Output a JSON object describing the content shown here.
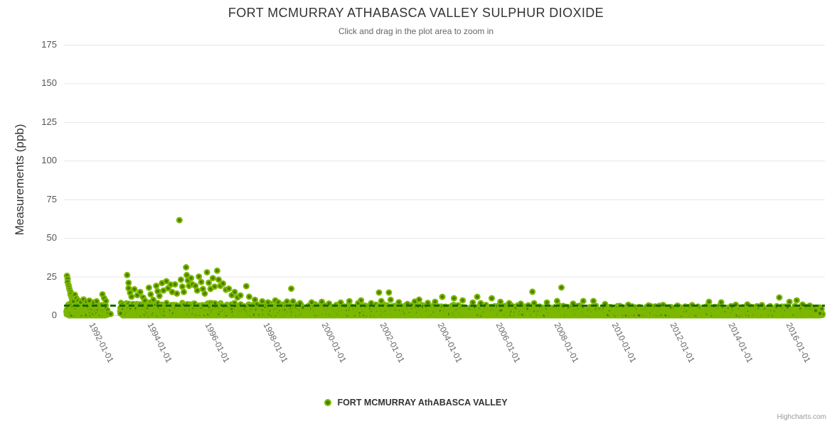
{
  "credits": "Highcharts.com",
  "colors": {
    "series": "#7cb800",
    "marker_inner": "#4a7c00",
    "plot_line": "#176b00",
    "grid": "#e6e6e6",
    "axis_line": "#ccd6eb",
    "title_text": "#333333",
    "muted_text": "#666666",
    "credits_text": "#999999"
  },
  "chart_data": {
    "type": "scatter",
    "title": "FORT MCMURRAY ATHABASCA VALLEY SULPHUR DIOXIDE",
    "subtitle": "Click and drag in the plot area to zoom in",
    "ylabel": "Measurements (ppb)",
    "ylim": [
      0,
      175
    ],
    "yticks": [
      0,
      25,
      50,
      75,
      100,
      125,
      150,
      175
    ],
    "xtick_labels": [
      "1992-01-01",
      "1994-01-01",
      "1996-01-01",
      "1998-01-01",
      "2000-01-01",
      "2002-01-01",
      "2004-01-01",
      "2006-01-01",
      "2008-01-01",
      "2010-01-01",
      "2012-01-01",
      "2014-01-01",
      "2016-01-01"
    ],
    "xtick_years": [
      1992,
      1994,
      1996,
      1998,
      2000,
      2002,
      2004,
      2006,
      2008,
      2010,
      2012,
      2014,
      2016
    ],
    "grid": true,
    "legend_position": "bottom",
    "plot_line": {
      "y": 6.2,
      "style": "dashed"
    },
    "series": [
      {
        "name": "FORT MCMURRAY AthABASCA VALLEY",
        "type": "scatter",
        "outlier_points": [
          [
            1990.88,
            25.5
          ],
          [
            1990.9,
            23.5
          ],
          [
            1990.9,
            21.5
          ],
          [
            1990.93,
            19.5
          ],
          [
            1990.95,
            18
          ],
          [
            1990.97,
            16.5
          ],
          [
            1991.0,
            15
          ],
          [
            1991.0,
            13.5
          ],
          [
            1991.03,
            12
          ],
          [
            1991.05,
            11
          ],
          [
            1991.08,
            10
          ],
          [
            1991.1,
            9
          ],
          [
            1991.15,
            13.2
          ],
          [
            1991.2,
            11
          ],
          [
            1991.26,
            9.5
          ],
          [
            1991.35,
            8.5
          ],
          [
            1991.45,
            10.2
          ],
          [
            1991.55,
            8.8
          ],
          [
            1991.65,
            9.4
          ],
          [
            1991.8,
            8.2
          ],
          [
            1991.9,
            9
          ],
          [
            1992.1,
            13.5
          ],
          [
            1992.16,
            11
          ],
          [
            1992.22,
            9.2
          ],
          [
            1992.38,
            0.8
          ],
          [
            1992.72,
            1.2
          ],
          [
            1992.95,
            26
          ],
          [
            1993.0,
            21
          ],
          [
            1993.0,
            17.5
          ],
          [
            1993.05,
            14.5
          ],
          [
            1993.1,
            12
          ],
          [
            1993.2,
            16.8
          ],
          [
            1993.3,
            13
          ],
          [
            1993.4,
            15
          ],
          [
            1993.5,
            11.5
          ],
          [
            1993.56,
            9.5
          ],
          [
            1993.7,
            17.8
          ],
          [
            1993.76,
            13.5
          ],
          [
            1993.85,
            10
          ],
          [
            1993.95,
            19
          ],
          [
            1994.0,
            15.5
          ],
          [
            1994.06,
            12.5
          ],
          [
            1994.15,
            20.8
          ],
          [
            1994.2,
            16
          ],
          [
            1994.3,
            22
          ],
          [
            1994.36,
            17.5
          ],
          [
            1994.45,
            19.8
          ],
          [
            1994.5,
            15
          ],
          [
            1994.6,
            20
          ],
          [
            1994.66,
            14
          ],
          [
            1994.75,
            61.5
          ],
          [
            1994.8,
            23
          ],
          [
            1994.85,
            18.5
          ],
          [
            1994.9,
            15
          ],
          [
            1994.98,
            31
          ],
          [
            1995.0,
            26
          ],
          [
            1995.04,
            22.5
          ],
          [
            1995.08,
            19
          ],
          [
            1995.15,
            24
          ],
          [
            1995.2,
            20
          ],
          [
            1995.3,
            19
          ],
          [
            1995.36,
            16
          ],
          [
            1995.42,
            25
          ],
          [
            1995.5,
            21.5
          ],
          [
            1995.56,
            17
          ],
          [
            1995.62,
            14
          ],
          [
            1995.7,
            27.8
          ],
          [
            1995.76,
            21
          ],
          [
            1995.82,
            17
          ],
          [
            1995.9,
            24
          ],
          [
            1995.96,
            18.5
          ],
          [
            1996.05,
            28.8
          ],
          [
            1996.1,
            23
          ],
          [
            1996.16,
            19
          ],
          [
            1996.25,
            20.5
          ],
          [
            1996.35,
            16.5
          ],
          [
            1996.45,
            17.2
          ],
          [
            1996.55,
            13
          ],
          [
            1996.65,
            15
          ],
          [
            1996.75,
            11.5
          ],
          [
            1996.85,
            12.8
          ],
          [
            1997.05,
            18.8
          ],
          [
            1997.15,
            12
          ],
          [
            1997.35,
            10
          ],
          [
            1997.6,
            9
          ],
          [
            1997.8,
            8.3
          ],
          [
            1998.05,
            9.6
          ],
          [
            1998.15,
            8.4
          ],
          [
            1998.45,
            8.8
          ],
          [
            1998.6,
            17.2
          ],
          [
            1998.66,
            8.9
          ],
          [
            1998.9,
            7.8
          ],
          [
            1999.3,
            8.3
          ],
          [
            1999.65,
            8.7
          ],
          [
            1999.9,
            7.6
          ],
          [
            2000.3,
            8.2
          ],
          [
            2000.6,
            9.1
          ],
          [
            2000.9,
            7.8
          ],
          [
            2001.0,
            9.6
          ],
          [
            2001.35,
            7.8
          ],
          [
            2001.62,
            14.7
          ],
          [
            2001.7,
            9.2
          ],
          [
            2001.96,
            14.7
          ],
          [
            2002.02,
            10
          ],
          [
            2002.3,
            8.4
          ],
          [
            2002.6,
            7.3
          ],
          [
            2002.85,
            8.8
          ],
          [
            2003.0,
            10.1
          ],
          [
            2003.3,
            8
          ],
          [
            2003.55,
            8.7
          ],
          [
            2003.8,
            11.9
          ],
          [
            2004.2,
            11
          ],
          [
            2004.5,
            9.6
          ],
          [
            2004.85,
            8.2
          ],
          [
            2005.0,
            11.9
          ],
          [
            2005.12,
            7.8
          ],
          [
            2005.5,
            11
          ],
          [
            2005.8,
            8.7
          ],
          [
            2006.1,
            7.8
          ],
          [
            2006.5,
            7.5
          ],
          [
            2006.9,
            15.2
          ],
          [
            2006.96,
            7.8
          ],
          [
            2007.4,
            8.2
          ],
          [
            2007.75,
            9.2
          ],
          [
            2007.9,
            17.9
          ],
          [
            2007.96,
            6
          ],
          [
            2008.3,
            7.5
          ],
          [
            2008.65,
            9.2
          ],
          [
            2009.0,
            9.2
          ],
          [
            2009.4,
            7.2
          ],
          [
            2010.2,
            6.8
          ],
          [
            2010.9,
            6.4
          ],
          [
            2011.4,
            6.6
          ],
          [
            2011.9,
            6.2
          ],
          [
            2012.4,
            6.5
          ],
          [
            2012.98,
            8.7
          ],
          [
            2013.4,
            8.3
          ],
          [
            2013.9,
            6.8
          ],
          [
            2014.3,
            7
          ],
          [
            2014.8,
            6.6
          ],
          [
            2015.4,
            11.5
          ],
          [
            2015.75,
            8.7
          ],
          [
            2016.0,
            9.6
          ],
          [
            2016.2,
            6.9
          ],
          [
            2016.45,
            6.2
          ],
          [
            2016.65,
            3
          ],
          [
            2016.8,
            1.2
          ]
        ],
        "dense_band": {
          "note": "continuous dense cloud of sub-daily measurements between 0 and ~7 ppb across full record",
          "x_start": 1990.85,
          "x_end": 2016.9,
          "y_min": 0,
          "top_envelope": [
            [
              1990.85,
              7.5
            ],
            [
              1992.3,
              6.8
            ],
            [
              1993.0,
              7.5
            ],
            [
              1997.0,
              6.8
            ],
            [
              2002.0,
              6.3
            ],
            [
              2008.0,
              5.6
            ],
            [
              2012.0,
              5.4
            ],
            [
              2016.9,
              5.2
            ]
          ],
          "gaps": [
            [
              1992.3,
              1992.7
            ]
          ],
          "points_per_year": 100,
          "seed": 42
        }
      }
    ]
  }
}
